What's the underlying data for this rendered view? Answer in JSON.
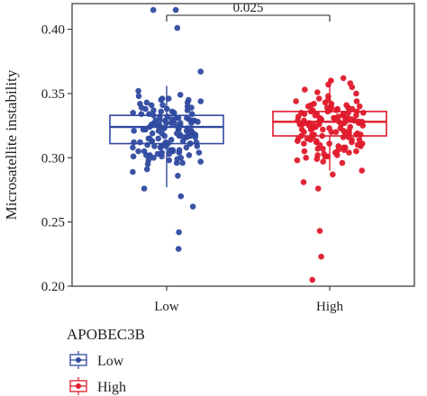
{
  "chart_data": {
    "type": "box",
    "ylabel": "Microsatellite instability",
    "xlabel": "",
    "categories": [
      "Low",
      "High"
    ],
    "ylim": [
      0.2,
      0.42
    ],
    "yticks": [
      "0.20",
      "0.25",
      "0.30",
      "0.35",
      "0.40"
    ],
    "ytick_values": [
      0.2,
      0.25,
      0.3,
      0.35,
      0.4
    ],
    "grid": false,
    "legend": {
      "title": "APOBEC3B",
      "placement": "bottom-left",
      "entries": [
        "Low",
        "High"
      ]
    },
    "comparison": {
      "label": "0.025",
      "groups": [
        "Low",
        "High"
      ]
    },
    "colors": {
      "Low": "#2f4aa0",
      "High": "#e0192b"
    },
    "series": [
      {
        "name": "Low",
        "box": {
          "q1": 0.311,
          "median": 0.324,
          "q3": 0.333,
          "whisker_low": 0.277,
          "whisker_high": 0.356
        },
        "points": [
          0.401,
          0.415,
          0.415,
          0.367,
          0.242,
          0.229,
          0.276,
          0.262,
          0.27,
          0.302,
          0.313,
          0.329,
          0.331,
          0.322,
          0.336,
          0.298,
          0.343,
          0.308,
          0.32,
          0.311,
          0.312,
          0.317,
          0.296,
          0.325,
          0.341,
          0.303,
          0.318,
          0.334,
          0.309,
          0.301,
          0.345,
          0.305,
          0.322,
          0.327,
          0.315,
          0.338,
          0.304,
          0.323,
          0.316,
          0.295,
          0.346,
          0.329,
          0.319,
          0.337,
          0.298,
          0.311,
          0.325,
          0.342,
          0.306,
          0.348,
          0.318,
          0.332,
          0.327,
          0.302,
          0.321,
          0.329,
          0.336,
          0.309,
          0.304,
          0.321,
          0.315,
          0.339,
          0.324,
          0.289,
          0.313,
          0.326,
          0.345,
          0.31,
          0.337,
          0.329,
          0.303,
          0.317,
          0.327,
          0.349,
          0.312,
          0.306,
          0.323,
          0.332,
          0.286,
          0.319,
          0.309,
          0.328,
          0.302,
          0.311,
          0.329,
          0.335,
          0.301,
          0.331,
          0.319,
          0.325,
          0.343,
          0.306,
          0.313,
          0.321,
          0.297,
          0.327,
          0.338,
          0.314,
          0.322,
          0.339,
          0.33,
          0.318,
          0.305,
          0.312,
          0.352,
          0.334,
          0.31,
          0.323,
          0.3,
          0.327,
          0.315,
          0.34,
          0.308,
          0.319,
          0.335,
          0.326,
          0.3,
          0.33,
          0.316,
          0.344,
          0.305,
          0.321,
          0.333,
          0.308,
          0.324,
          0.346,
          0.296,
          0.318,
          0.331,
          0.312,
          0.299,
          0.316,
          0.304,
          0.334,
          0.327,
          0.291,
          0.322,
          0.341,
          0.309,
          0.317
        ]
      },
      {
        "name": "High",
        "box": {
          "q1": 0.317,
          "median": 0.328,
          "q3": 0.336,
          "whisker_low": 0.29,
          "whisker_high": 0.362
        },
        "points": [
          0.243,
          0.223,
          0.205,
          0.276,
          0.281,
          0.287,
          0.29,
          0.362,
          0.36,
          0.355,
          0.358,
          0.351,
          0.348,
          0.357,
          0.353,
          0.35,
          0.346,
          0.344,
          0.302,
          0.317,
          0.326,
          0.334,
          0.311,
          0.329,
          0.339,
          0.306,
          0.321,
          0.331,
          0.314,
          0.336,
          0.327,
          0.299,
          0.322,
          0.333,
          0.31,
          0.325,
          0.341,
          0.316,
          0.304,
          0.328,
          0.337,
          0.319,
          0.312,
          0.33,
          0.324,
          0.342,
          0.308,
          0.32,
          0.333,
          0.296,
          0.318,
          0.327,
          0.335,
          0.313,
          0.305,
          0.323,
          0.339,
          0.329,
          0.316,
          0.309,
          0.331,
          0.326,
          0.343,
          0.301,
          0.32,
          0.334,
          0.314,
          0.328,
          0.338,
          0.307,
          0.318,
          0.325,
          0.332,
          0.297,
          0.322,
          0.34,
          0.311,
          0.329,
          0.303,
          0.33,
          0.315,
          0.336,
          0.324,
          0.309,
          0.327,
          0.335,
          0.319,
          0.301,
          0.326,
          0.344,
          0.313,
          0.321,
          0.337,
          0.306,
          0.331,
          0.317,
          0.328,
          0.341,
          0.298,
          0.323,
          0.333,
          0.312,
          0.33,
          0.318,
          0.339,
          0.305,
          0.327,
          0.32,
          0.336,
          0.31,
          0.324,
          0.342,
          0.302,
          0.329,
          0.316,
          0.334,
          0.308,
          0.325,
          0.338,
          0.314,
          0.331,
          0.322,
          0.3,
          0.335,
          0.318,
          0.328,
          0.345,
          0.311,
          0.326,
          0.307,
          0.332,
          0.319,
          0.34,
          0.315,
          0.323,
          0.304,
          0.337,
          0.328
        ]
      }
    ]
  }
}
